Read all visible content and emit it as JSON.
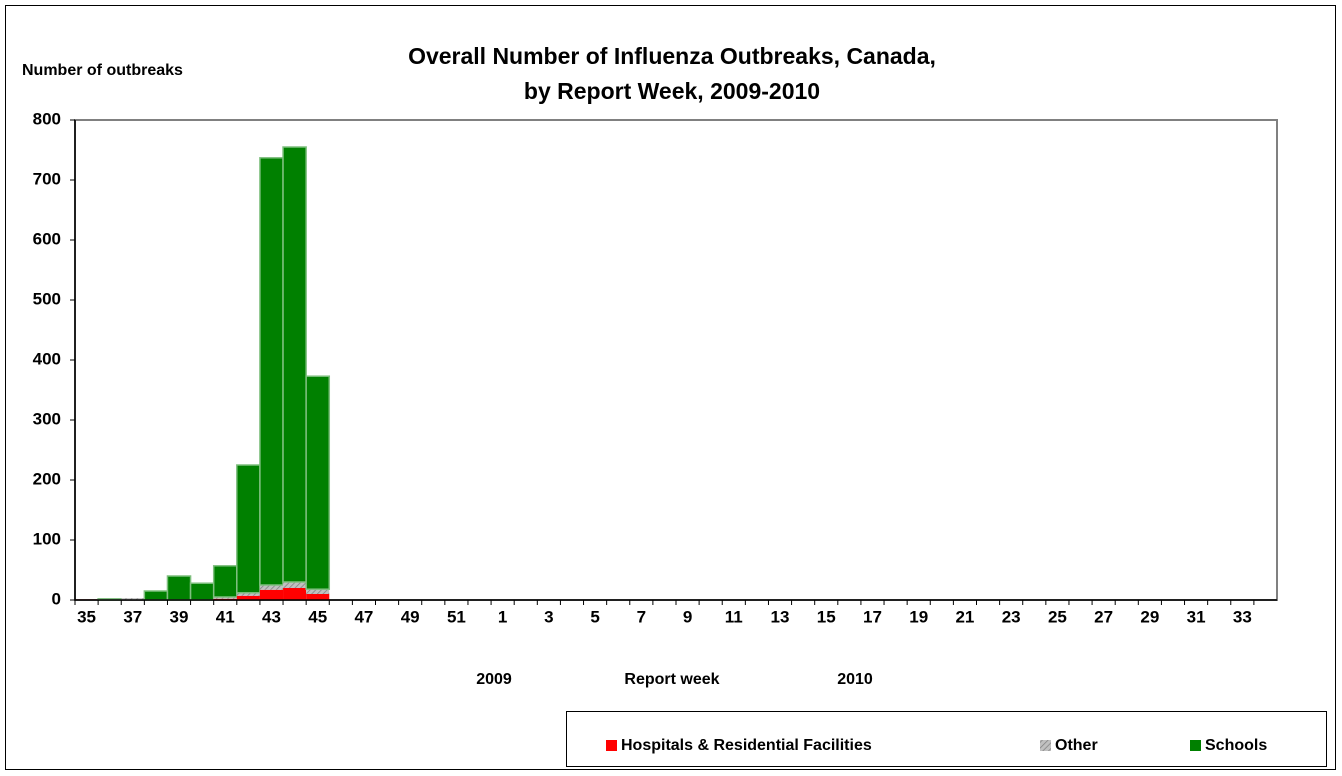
{
  "chart_data": {
    "type": "stacked_bar",
    "title": [
      "Overall Number of Influenza Outbreaks, Canada,",
      "by Report Week, 2009-2010"
    ],
    "y_label": "Number of outbreaks",
    "x_label": "Report week",
    "year_labels": [
      "2009",
      "2010"
    ],
    "categories": [
      "35",
      null,
      "37",
      null,
      "39",
      null,
      "41",
      null,
      "43",
      null,
      "45",
      null,
      "47",
      null,
      "49",
      null,
      "51",
      null,
      "1",
      null,
      "3",
      null,
      "5",
      null,
      "7",
      null,
      "9",
      null,
      "11",
      null,
      "13",
      null,
      "15",
      null,
      "17",
      null,
      "19",
      null,
      "21",
      null,
      "23",
      null,
      "25",
      null,
      "27",
      null,
      "29",
      null,
      "31",
      null,
      "33",
      null
    ],
    "series": [
      {
        "name": "Hospitals & Residential Facilities",
        "color": "#ff0000",
        "values": [
          1,
          0,
          0,
          0,
          0,
          0,
          2,
          7,
          17,
          20,
          10,
          0,
          0,
          0,
          0,
          0,
          0,
          0,
          0,
          0,
          0,
          0,
          0,
          0,
          0,
          0,
          0,
          0,
          0,
          0,
          0,
          0,
          0,
          0,
          0,
          0,
          0,
          0,
          0,
          0,
          0,
          0,
          0,
          0,
          0,
          0,
          0,
          0,
          0,
          0,
          0,
          0
        ]
      },
      {
        "name": "Other",
        "color": "#c0c0c0",
        "values": [
          0,
          0,
          3,
          0,
          0,
          0,
          3,
          5,
          8,
          10,
          8,
          0,
          0,
          0,
          0,
          0,
          0,
          0,
          0,
          0,
          0,
          0,
          0,
          0,
          0,
          0,
          0,
          0,
          0,
          0,
          0,
          0,
          0,
          0,
          0,
          0,
          0,
          0,
          0,
          0,
          0,
          0,
          0,
          0,
          0,
          0,
          0,
          0,
          0,
          0,
          0,
          0
        ]
      },
      {
        "name": "Schools",
        "color": "#008000",
        "values": [
          0,
          2,
          0,
          15,
          40,
          28,
          52,
          213,
          712,
          725,
          355,
          0,
          0,
          0,
          0,
          0,
          0,
          0,
          0,
          0,
          0,
          0,
          0,
          0,
          0,
          0,
          0,
          0,
          0,
          0,
          0,
          0,
          0,
          0,
          0,
          0,
          0,
          0,
          0,
          0,
          0,
          0,
          0,
          0,
          0,
          0,
          0,
          0,
          0,
          0,
          0,
          0
        ]
      }
    ],
    "ylim": [
      0,
      800
    ],
    "yticks": [
      0,
      100,
      200,
      300,
      400,
      500,
      600,
      700,
      800
    ]
  }
}
